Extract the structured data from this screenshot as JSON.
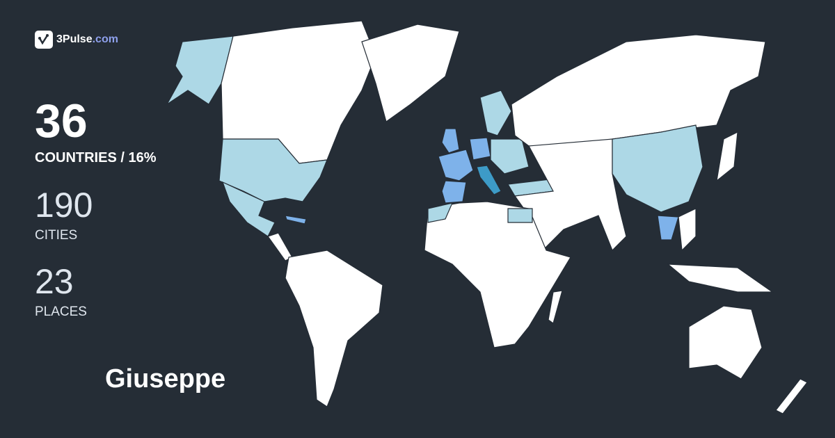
{
  "brand": {
    "name": "3Pulse",
    "domain": ".com",
    "icon": "check-pulse-icon"
  },
  "stats": {
    "countries": {
      "value": "36",
      "label": "COUNTRIES / 16%"
    },
    "cities": {
      "value": "190",
      "label": "CITIES"
    },
    "places": {
      "value": "23",
      "label": "PLACES"
    }
  },
  "user": {
    "name": "Giuseppe"
  },
  "colors": {
    "background": "#252d36",
    "unvisited": "#ffffff",
    "visited_light": "#add8e6",
    "visited_medium": "#7eb2ea",
    "visited_dark": "#3d9bc7",
    "brand_accent": "#8ea0ec"
  }
}
